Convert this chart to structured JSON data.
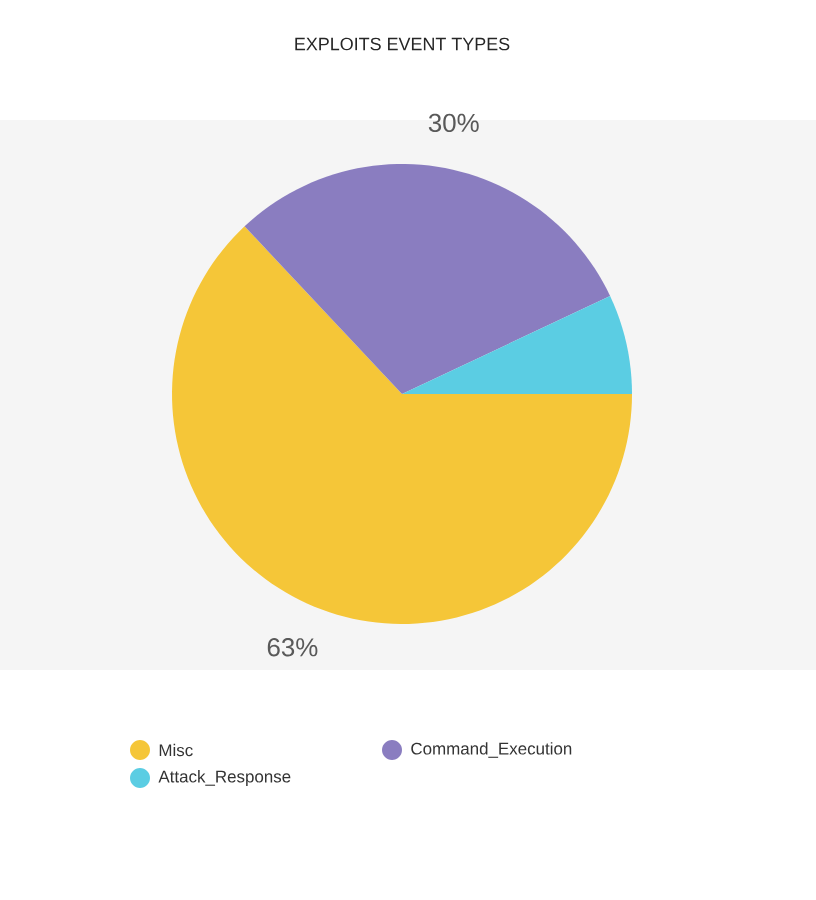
{
  "chart_data": {
    "type": "pie",
    "title": "EXPLOITS EVENT TYPES",
    "categories": [
      "Misc",
      "Command_Execution",
      "Attack_Response"
    ],
    "values": [
      63,
      30,
      7
    ],
    "colors": [
      "#f5c638",
      "#8a7dc0",
      "#5bcde3"
    ],
    "value_labels": [
      "63%",
      "30%",
      null
    ],
    "legend": "bottom"
  }
}
